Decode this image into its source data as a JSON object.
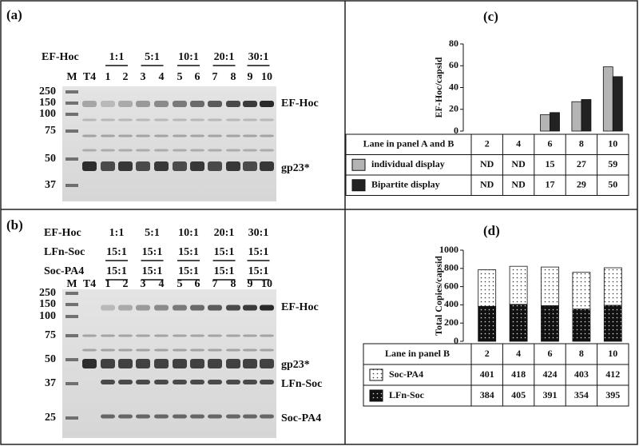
{
  "panel_a": {
    "label": "(a)",
    "row_label": "EF-Hoc",
    "ratios": [
      "1:1",
      "5:1",
      "10:1",
      "20:1",
      "30:1"
    ],
    "lanes": [
      "M",
      "T4",
      "1",
      "2",
      "3",
      "4",
      "5",
      "6",
      "7",
      "8",
      "9",
      "10"
    ],
    "markers": [
      "250",
      "150",
      "100",
      "75",
      "50",
      "37"
    ],
    "bands": [
      "EF-Hoc",
      "gp23*"
    ]
  },
  "panel_b": {
    "label": "(b)",
    "rows": [
      {
        "label": "EF-Hoc",
        "ratios": [
          "1:1",
          "5:1",
          "10:1",
          "20:1",
          "30:1"
        ]
      },
      {
        "label": "LFn-Soc",
        "ratios": [
          "15:1",
          "15:1",
          "15:1",
          "15:1",
          "15:1"
        ]
      },
      {
        "label": "Soc-PA4",
        "ratios": [
          "15:1",
          "15:1",
          "15:1",
          "15:1",
          "15:1"
        ]
      }
    ],
    "lanes": [
      "M",
      "T4",
      "1",
      "2",
      "3",
      "4",
      "5",
      "6",
      "7",
      "8",
      "9",
      "10"
    ],
    "markers": [
      "250",
      "150",
      "100",
      "75",
      "50",
      "37",
      "25"
    ],
    "bands": [
      "EF-Hoc",
      "gp23*",
      "LFn-Soc",
      "Soc-PA4"
    ]
  },
  "chart_data": [
    {
      "type": "bar",
      "label": "(c)",
      "ylabel": "EF-Hoc/capsid",
      "category_header": "Lane in panel A and B",
      "categories": [
        "2",
        "4",
        "6",
        "8",
        "10"
      ],
      "ylim": [
        0,
        80
      ],
      "yticks": [
        0,
        20,
        40,
        60,
        80
      ],
      "series": [
        {
          "name": "individual display",
          "color": "#b4b4b4",
          "values": [
            null,
            null,
            15,
            27,
            59
          ],
          "value_labels": [
            "ND",
            "ND",
            "15",
            "27",
            "59"
          ]
        },
        {
          "name": "Bipartite display",
          "color": "#222222",
          "values": [
            null,
            null,
            17,
            29,
            50
          ],
          "value_labels": [
            "ND",
            "ND",
            "17",
            "29",
            "50"
          ]
        }
      ]
    },
    {
      "type": "stacked_bar",
      "label": "(d)",
      "ylabel": "Total Copies/capsid",
      "category_header": "Lane in panel B",
      "categories": [
        "2",
        "4",
        "6",
        "8",
        "10"
      ],
      "ylim": [
        0,
        1000
      ],
      "yticks": [
        0,
        200,
        400,
        600,
        800,
        1000
      ],
      "series": [
        {
          "name": "Soc-PA4",
          "color": "#ffffff",
          "values": [
            401,
            418,
            424,
            403,
            412
          ]
        },
        {
          "name": "LFn-Soc",
          "color": "#111111",
          "values": [
            384,
            405,
            391,
            354,
            395
          ]
        }
      ]
    }
  ]
}
